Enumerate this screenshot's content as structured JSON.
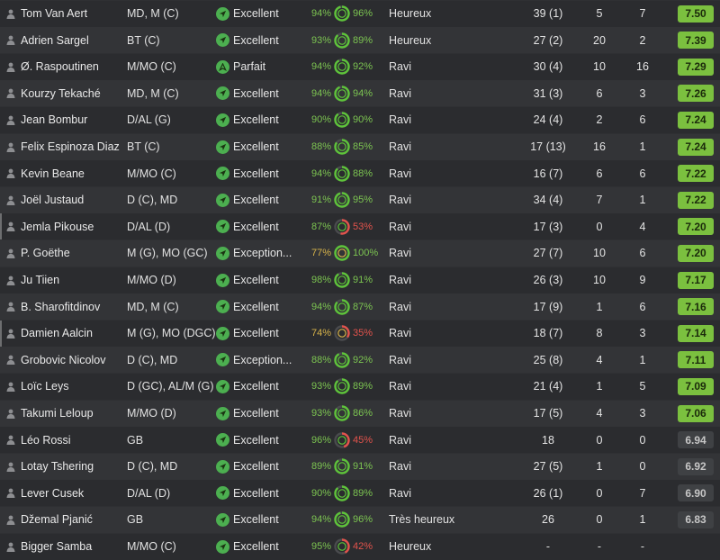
{
  "colors": {
    "good": "#7bc03f",
    "ring_green": "#5ec43a",
    "ring_yellow": "#d7b34a",
    "ring_red": "#e2534c",
    "status": "#4caf50"
  },
  "players": [
    {
      "name": "Tom Van Aert",
      "position": "MD, M (C)",
      "status_icon": "arrow-icon",
      "status": "Excellent",
      "fitness": "94%",
      "fitness_color": "green",
      "condition": "96%",
      "condition_value": 96,
      "condition_color": "green",
      "morale": "Heureux",
      "apps": "39 (1)",
      "goals": "5",
      "assists": "7",
      "rating": "7.50",
      "rating_class": "good",
      "mark": false
    },
    {
      "name": "Adrien Sargel",
      "position": "BT (C)",
      "status_icon": "arrow-icon",
      "status": "Excellent",
      "fitness": "93%",
      "fitness_color": "green",
      "condition": "89%",
      "condition_value": 89,
      "condition_color": "green",
      "morale": "Heureux",
      "apps": "27 (2)",
      "goals": "20",
      "assists": "2",
      "rating": "7.39",
      "rating_class": "good",
      "mark": false
    },
    {
      "name": "Ø. Raspoutinen",
      "position": "M/MO (C)",
      "status_icon": "double-arrow-icon",
      "status": "Parfait",
      "fitness": "94%",
      "fitness_color": "green",
      "condition": "92%",
      "condition_value": 92,
      "condition_color": "green",
      "morale": "Ravi",
      "apps": "30 (4)",
      "goals": "10",
      "assists": "16",
      "rating": "7.29",
      "rating_class": "good",
      "mark": false
    },
    {
      "name": "Kourzy Tekaché",
      "position": "MD, M (C)",
      "status_icon": "arrow-icon",
      "status": "Excellent",
      "fitness": "94%",
      "fitness_color": "green",
      "condition": "94%",
      "condition_value": 94,
      "condition_color": "green",
      "morale": "Ravi",
      "apps": "31 (3)",
      "goals": "6",
      "assists": "3",
      "rating": "7.26",
      "rating_class": "good",
      "mark": false
    },
    {
      "name": "Jean Bombur",
      "position": "D/AL (G)",
      "status_icon": "arrow-icon",
      "status": "Excellent",
      "fitness": "90%",
      "fitness_color": "green",
      "condition": "90%",
      "condition_value": 90,
      "condition_color": "green",
      "morale": "Ravi",
      "apps": "24 (4)",
      "goals": "2",
      "assists": "6",
      "rating": "7.24",
      "rating_class": "good",
      "mark": false
    },
    {
      "name": "Felix Espinoza Diaz",
      "position": "BT (C)",
      "status_icon": "arrow-icon",
      "status": "Excellent",
      "fitness": "88%",
      "fitness_color": "green",
      "condition": "85%",
      "condition_value": 85,
      "condition_color": "green",
      "morale": "Ravi",
      "apps": "17 (13)",
      "goals": "16",
      "assists": "1",
      "rating": "7.24",
      "rating_class": "good",
      "mark": false
    },
    {
      "name": "Kevin Beane",
      "position": "M/MO (C)",
      "status_icon": "arrow-icon",
      "status": "Excellent",
      "fitness": "94%",
      "fitness_color": "green",
      "condition": "88%",
      "condition_value": 88,
      "condition_color": "green",
      "morale": "Ravi",
      "apps": "16 (7)",
      "goals": "6",
      "assists": "6",
      "rating": "7.22",
      "rating_class": "good",
      "mark": false
    },
    {
      "name": "Joël Justaud",
      "position": "D (C), MD",
      "status_icon": "arrow-icon",
      "status": "Excellent",
      "fitness": "91%",
      "fitness_color": "green",
      "condition": "95%",
      "condition_value": 95,
      "condition_color": "green",
      "morale": "Ravi",
      "apps": "34 (4)",
      "goals": "7",
      "assists": "1",
      "rating": "7.22",
      "rating_class": "good",
      "mark": false
    },
    {
      "name": "Jemla Pikouse",
      "position": "D/AL (D)",
      "status_icon": "arrow-icon",
      "status": "Excellent",
      "fitness": "87%",
      "fitness_color": "green",
      "condition": "53%",
      "condition_value": 53,
      "condition_color": "red",
      "morale": "Ravi",
      "apps": "17 (3)",
      "goals": "0",
      "assists": "4",
      "rating": "7.20",
      "rating_class": "good",
      "mark": true
    },
    {
      "name": "P. Goëthe",
      "position": "M (G), MO (GC)",
      "status_icon": "arrow-icon",
      "status": "Exception...",
      "fitness": "77%",
      "fitness_color": "yellow",
      "condition": "100%",
      "condition_value": 100,
      "condition_color": "green",
      "morale": "Ravi",
      "apps": "27 (7)",
      "goals": "10",
      "assists": "6",
      "rating": "7.20",
      "rating_class": "good",
      "mark": false
    },
    {
      "name": "Ju Tiien",
      "position": "M/MO (D)",
      "status_icon": "arrow-icon",
      "status": "Excellent",
      "fitness": "98%",
      "fitness_color": "green",
      "condition": "91%",
      "condition_value": 91,
      "condition_color": "green",
      "morale": "Ravi",
      "apps": "26 (3)",
      "goals": "10",
      "assists": "9",
      "rating": "7.17",
      "rating_class": "good",
      "mark": false
    },
    {
      "name": "B. Sharofitdinov",
      "position": "MD, M (C)",
      "status_icon": "arrow-icon",
      "status": "Excellent",
      "fitness": "94%",
      "fitness_color": "green",
      "condition": "87%",
      "condition_value": 87,
      "condition_color": "green",
      "morale": "Ravi",
      "apps": "17 (9)",
      "goals": "1",
      "assists": "6",
      "rating": "7.16",
      "rating_class": "good",
      "mark": false
    },
    {
      "name": "Damien Aalcin",
      "position": "M (G), MO (DGC)",
      "status_icon": "arrow-icon",
      "status": "Excellent",
      "fitness": "74%",
      "fitness_color": "yellow",
      "condition": "35%",
      "condition_value": 35,
      "condition_color": "red",
      "morale": "Ravi",
      "apps": "18 (7)",
      "goals": "8",
      "assists": "3",
      "rating": "7.14",
      "rating_class": "good",
      "mark": true
    },
    {
      "name": "Grobovic Nicolov",
      "position": "D (C), MD",
      "status_icon": "arrow-icon",
      "status": "Exception...",
      "fitness": "88%",
      "fitness_color": "green",
      "condition": "92%",
      "condition_value": 92,
      "condition_color": "green",
      "morale": "Ravi",
      "apps": "25 (8)",
      "goals": "4",
      "assists": "1",
      "rating": "7.11",
      "rating_class": "good",
      "mark": false
    },
    {
      "name": "Loïc Leys",
      "position": "D (GC), AL/M (G)",
      "status_icon": "arrow-icon",
      "status": "Excellent",
      "fitness": "93%",
      "fitness_color": "green",
      "condition": "89%",
      "condition_value": 89,
      "condition_color": "green",
      "morale": "Ravi",
      "apps": "21 (4)",
      "goals": "1",
      "assists": "5",
      "rating": "7.09",
      "rating_class": "good",
      "mark": false
    },
    {
      "name": "Takumi Leloup",
      "position": "M/MO (D)",
      "status_icon": "arrow-icon",
      "status": "Excellent",
      "fitness": "93%",
      "fitness_color": "green",
      "condition": "86%",
      "condition_value": 86,
      "condition_color": "green",
      "morale": "Ravi",
      "apps": "17 (5)",
      "goals": "4",
      "assists": "3",
      "rating": "7.06",
      "rating_class": "good",
      "mark": false
    },
    {
      "name": "Léo Rossi",
      "position": "GB",
      "status_icon": "arrow-icon",
      "status": "Excellent",
      "fitness": "96%",
      "fitness_color": "green",
      "condition": "45%",
      "condition_value": 45,
      "condition_color": "red",
      "morale": "Ravi",
      "apps": "18",
      "goals": "0",
      "assists": "0",
      "rating": "6.94",
      "rating_class": "avg",
      "mark": false
    },
    {
      "name": "Lotay Tshering",
      "position": "D (C), MD",
      "status_icon": "arrow-icon",
      "status": "Excellent",
      "fitness": "89%",
      "fitness_color": "green",
      "condition": "91%",
      "condition_value": 91,
      "condition_color": "green",
      "morale": "Ravi",
      "apps": "27 (5)",
      "goals": "1",
      "assists": "0",
      "rating": "6.92",
      "rating_class": "avg",
      "mark": false
    },
    {
      "name": "Lever Cusek",
      "position": "D/AL (D)",
      "status_icon": "arrow-icon",
      "status": "Excellent",
      "fitness": "90%",
      "fitness_color": "green",
      "condition": "89%",
      "condition_value": 89,
      "condition_color": "green",
      "morale": "Ravi",
      "apps": "26 (1)",
      "goals": "0",
      "assists": "7",
      "rating": "6.90",
      "rating_class": "avg",
      "mark": false
    },
    {
      "name": "Džemal Pjanić",
      "position": "GB",
      "status_icon": "arrow-icon",
      "status": "Excellent",
      "fitness": "94%",
      "fitness_color": "green",
      "condition": "96%",
      "condition_value": 96,
      "condition_color": "green",
      "morale": "Très heureux",
      "apps": "26",
      "goals": "0",
      "assists": "1",
      "rating": "6.83",
      "rating_class": "avg",
      "mark": false
    },
    {
      "name": "Bigger Samba",
      "position": "M/MO (C)",
      "status_icon": "arrow-icon",
      "status": "Excellent",
      "fitness": "95%",
      "fitness_color": "green",
      "condition": "42%",
      "condition_value": 42,
      "condition_color": "red",
      "morale": "Heureux",
      "apps": "-",
      "goals": "-",
      "assists": "-",
      "rating": "",
      "rating_class": "none",
      "mark": false
    }
  ]
}
